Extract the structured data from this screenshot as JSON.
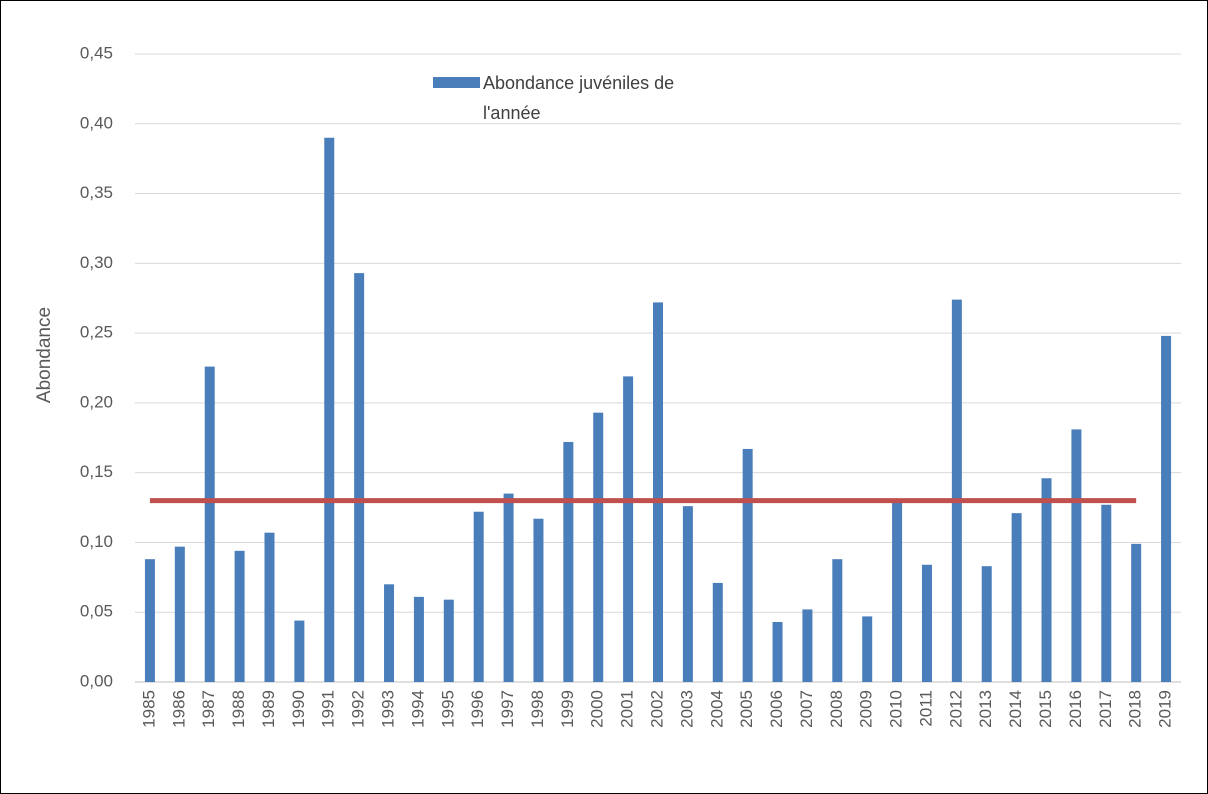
{
  "chart_data": {
    "type": "bar",
    "y_label": "Abondance",
    "categories": [
      "1985",
      "1986",
      "1987",
      "1988",
      "1989",
      "1990",
      "1991",
      "1992",
      "1993",
      "1994",
      "1995",
      "1996",
      "1997",
      "1998",
      "1999",
      "2000",
      "2001",
      "2002",
      "2003",
      "2004",
      "2005",
      "2006",
      "2007",
      "2008",
      "2009",
      "2010",
      "2011",
      "2012",
      "2013",
      "2014",
      "2015",
      "2016",
      "2017",
      "2018",
      "2019"
    ],
    "series": [
      {
        "name": "Abondance juvéniles de l'année",
        "color": "#4a7ebb",
        "values": [
          0.088,
          0.097,
          0.226,
          0.094,
          0.107,
          0.044,
          0.39,
          0.293,
          0.07,
          0.061,
          0.059,
          0.122,
          0.135,
          0.117,
          0.172,
          0.193,
          0.219,
          0.272,
          0.126,
          0.071,
          0.167,
          0.043,
          0.052,
          0.088,
          0.047,
          0.13,
          0.084,
          0.274,
          0.083,
          0.121,
          0.146,
          0.181,
          0.127,
          0.099,
          0.248
        ]
      },
      {
        "type": "line",
        "color": "#c0504d",
        "values": [
          0.13,
          0.13,
          0.13,
          0.13,
          0.13,
          0.13,
          0.13,
          0.13,
          0.13,
          0.13,
          0.13,
          0.13,
          0.13,
          0.13,
          0.13,
          0.13,
          0.13,
          0.13,
          0.13,
          0.13,
          0.13,
          0.13,
          0.13,
          0.13,
          0.13,
          0.13,
          0.13,
          0.13,
          0.13,
          0.13,
          0.13,
          0.13,
          0.13,
          0.13,
          null
        ]
      }
    ],
    "ylim": [
      0,
      0.45
    ],
    "yticks": [
      {
        "value": 0,
        "label": "0,00"
      },
      {
        "value": 0.05,
        "label": "0,05"
      },
      {
        "value": 0.1,
        "label": "0,10"
      },
      {
        "value": 0.15,
        "label": "0,15"
      },
      {
        "value": 0.2,
        "label": "0,20"
      },
      {
        "value": 0.25,
        "label": "0,25"
      },
      {
        "value": 0.3,
        "label": "0,30"
      },
      {
        "value": 0.35,
        "label": "0,35"
      },
      {
        "value": 0.4,
        "label": "0,40"
      },
      {
        "value": 0.45,
        "label": "0,45"
      }
    ],
    "grid": true,
    "legend": "top"
  }
}
